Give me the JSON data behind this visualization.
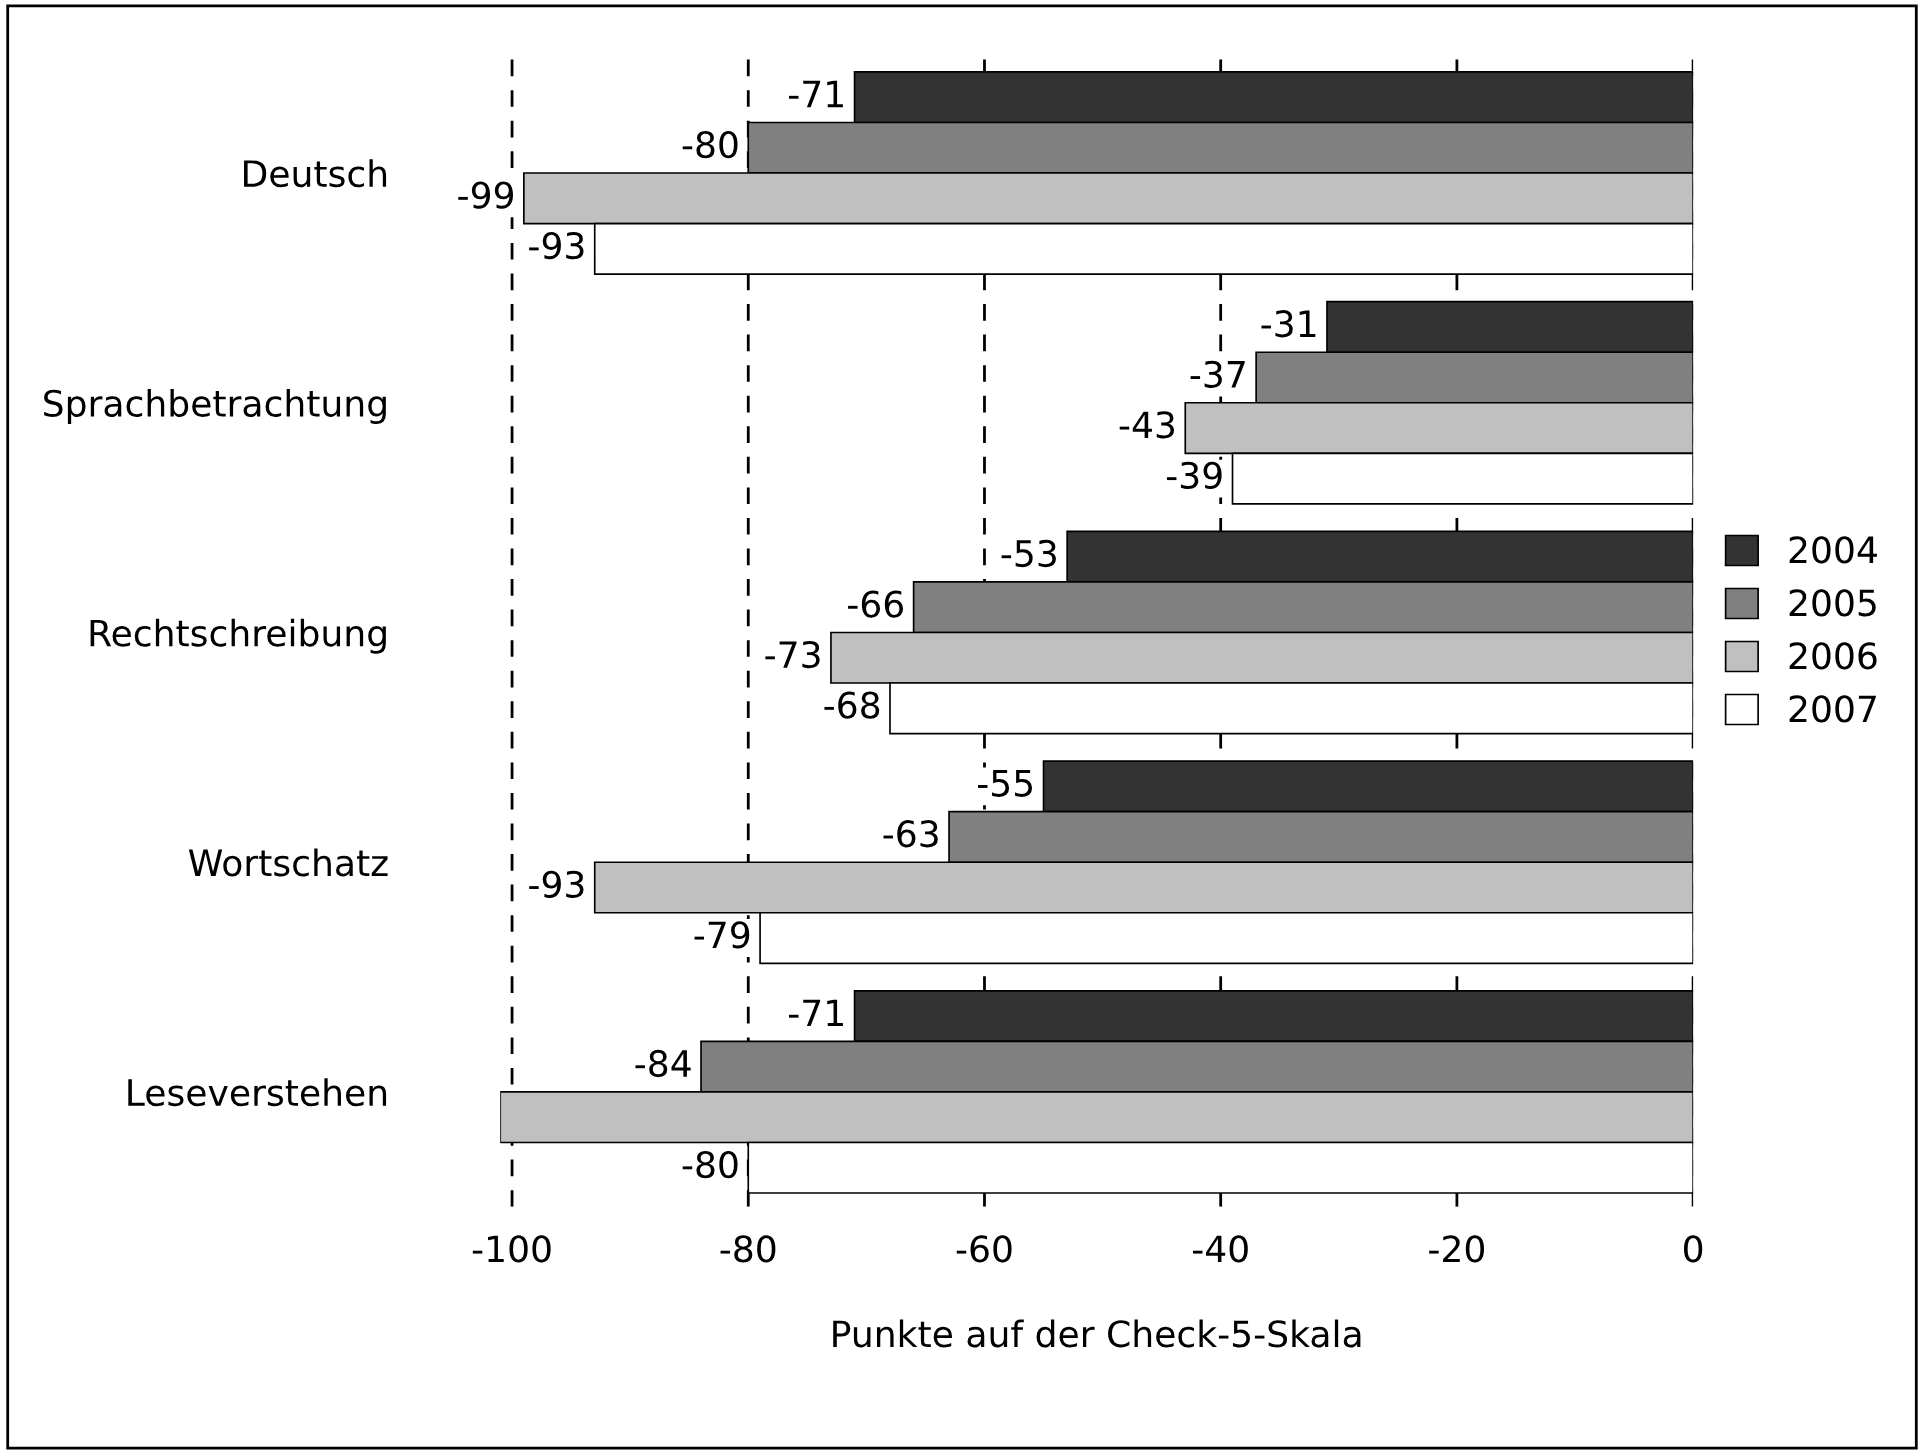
{
  "chart_data": {
    "type": "bar",
    "orientation": "horizontal",
    "xlabel": "Punkte auf der Check-5-Skala",
    "categories": [
      "Deutsch",
      "Sprachbetrachtung",
      "Rechtschreibung",
      "Wortschatz",
      "Leseverstehen"
    ],
    "series": [
      {
        "name": "2004",
        "color": "#333333",
        "values": [
          -71,
          -31,
          -53,
          -55,
          -71
        ],
        "value_labels": [
          "-71",
          "-31",
          "-53",
          "-55",
          "-71"
        ]
      },
      {
        "name": "2005",
        "color": "#808080",
        "values": [
          -80,
          -37,
          -66,
          -63,
          -84
        ],
        "value_labels": [
          "-80",
          "-37",
          "-66",
          "-63",
          "-84"
        ]
      },
      {
        "name": "2006",
        "color": "#c0c0c0",
        "values": [
          -99,
          -43,
          -73,
          -93,
          -101
        ],
        "value_labels": [
          "-99",
          "-43",
          "-73",
          "-93",
          null
        ]
      },
      {
        "name": "2007",
        "color": "#ffffff",
        "values": [
          -93,
          -39,
          -68,
          -79,
          -80
        ],
        "value_labels": [
          "-93",
          "-39",
          "-68",
          "-79",
          "-80"
        ]
      }
    ],
    "xlim": [
      -101,
      0
    ],
    "xticks": [
      -100,
      -80,
      -60,
      -40,
      -20,
      0
    ],
    "grid": "x",
    "legend": "right"
  }
}
